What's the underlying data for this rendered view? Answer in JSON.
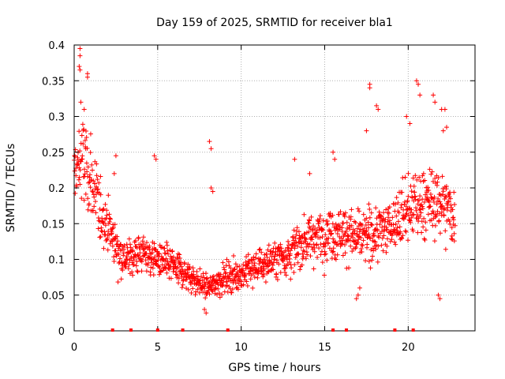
{
  "chart_data": {
    "type": "scatter",
    "title": "Day 159 of 2025, SRMTID for receiver bla1",
    "xlabel": "GPS time / hours",
    "ylabel": "SRMTID / TECUs",
    "xlim": [
      0,
      24
    ],
    "ylim": [
      0,
      0.4
    ],
    "xticks": [
      0,
      5,
      10,
      15,
      20
    ],
    "yticks": [
      0,
      0.05,
      0.1,
      0.15,
      0.2,
      0.25,
      0.3,
      0.35,
      0.4
    ],
    "ytick_labels": [
      "0",
      "0.05",
      "0.1",
      "0.15",
      "0.2",
      "0.25",
      "0.3",
      "0.35",
      "0.4"
    ],
    "grid": true,
    "marker": "plus",
    "color": "#ff0000",
    "trend": [
      [
        0,
        0.22
      ],
      [
        0.5,
        0.24
      ],
      [
        1,
        0.21
      ],
      [
        1.5,
        0.17
      ],
      [
        2,
        0.15
      ],
      [
        2.5,
        0.12
      ],
      [
        3,
        0.1
      ],
      [
        4,
        0.11
      ],
      [
        5,
        0.1
      ],
      [
        6,
        0.09
      ],
      [
        7,
        0.075
      ],
      [
        8,
        0.06
      ],
      [
        9,
        0.075
      ],
      [
        10,
        0.08
      ],
      [
        11,
        0.09
      ],
      [
        12,
        0.1
      ],
      [
        13,
        0.11
      ],
      [
        14,
        0.13
      ],
      [
        15,
        0.135
      ],
      [
        16,
        0.14
      ],
      [
        17,
        0.13
      ],
      [
        18,
        0.135
      ],
      [
        19,
        0.15
      ],
      [
        20,
        0.17
      ],
      [
        21,
        0.18
      ],
      [
        22,
        0.18
      ],
      [
        22.8,
        0.16
      ]
    ],
    "outliers": [
      [
        0.35,
        0.395
      ],
      [
        0.35,
        0.385
      ],
      [
        0.3,
        0.37
      ],
      [
        0.35,
        0.365
      ],
      [
        0.8,
        0.36
      ],
      [
        0.8,
        0.355
      ],
      [
        0.4,
        0.32
      ],
      [
        0.6,
        0.31
      ],
      [
        8.1,
        0.265
      ],
      [
        8.2,
        0.255
      ],
      [
        8.2,
        0.2
      ],
      [
        8.3,
        0.195
      ],
      [
        17.7,
        0.345
      ],
      [
        17.7,
        0.34
      ],
      [
        18.1,
        0.315
      ],
      [
        18.2,
        0.31
      ],
      [
        17.5,
        0.28
      ],
      [
        19.9,
        0.3
      ],
      [
        20.1,
        0.29
      ],
      [
        20.5,
        0.35
      ],
      [
        20.6,
        0.345
      ],
      [
        20.7,
        0.33
      ],
      [
        21.5,
        0.33
      ],
      [
        21.6,
        0.32
      ],
      [
        22,
        0.31
      ],
      [
        22.2,
        0.31
      ],
      [
        22.1,
        0.28
      ],
      [
        22.3,
        0.285
      ],
      [
        21.8,
        0.05
      ],
      [
        21.9,
        0.045
      ],
      [
        16.9,
        0.045
      ],
      [
        17,
        0.05
      ],
      [
        17.1,
        0.06
      ],
      [
        4.8,
        0.245
      ],
      [
        4.9,
        0.24
      ],
      [
        2.5,
        0.245
      ],
      [
        2.4,
        0.22
      ],
      [
        7.8,
        0.03
      ],
      [
        7.9,
        0.025
      ],
      [
        15.5,
        0.25
      ],
      [
        15.6,
        0.24
      ],
      [
        13.2,
        0.24
      ],
      [
        14.1,
        0.22
      ]
    ],
    "gap_markers": [
      2.3,
      3.4,
      5.0,
      6.5,
      9.2,
      15.5,
      16.3,
      19.2,
      20.3
    ]
  }
}
